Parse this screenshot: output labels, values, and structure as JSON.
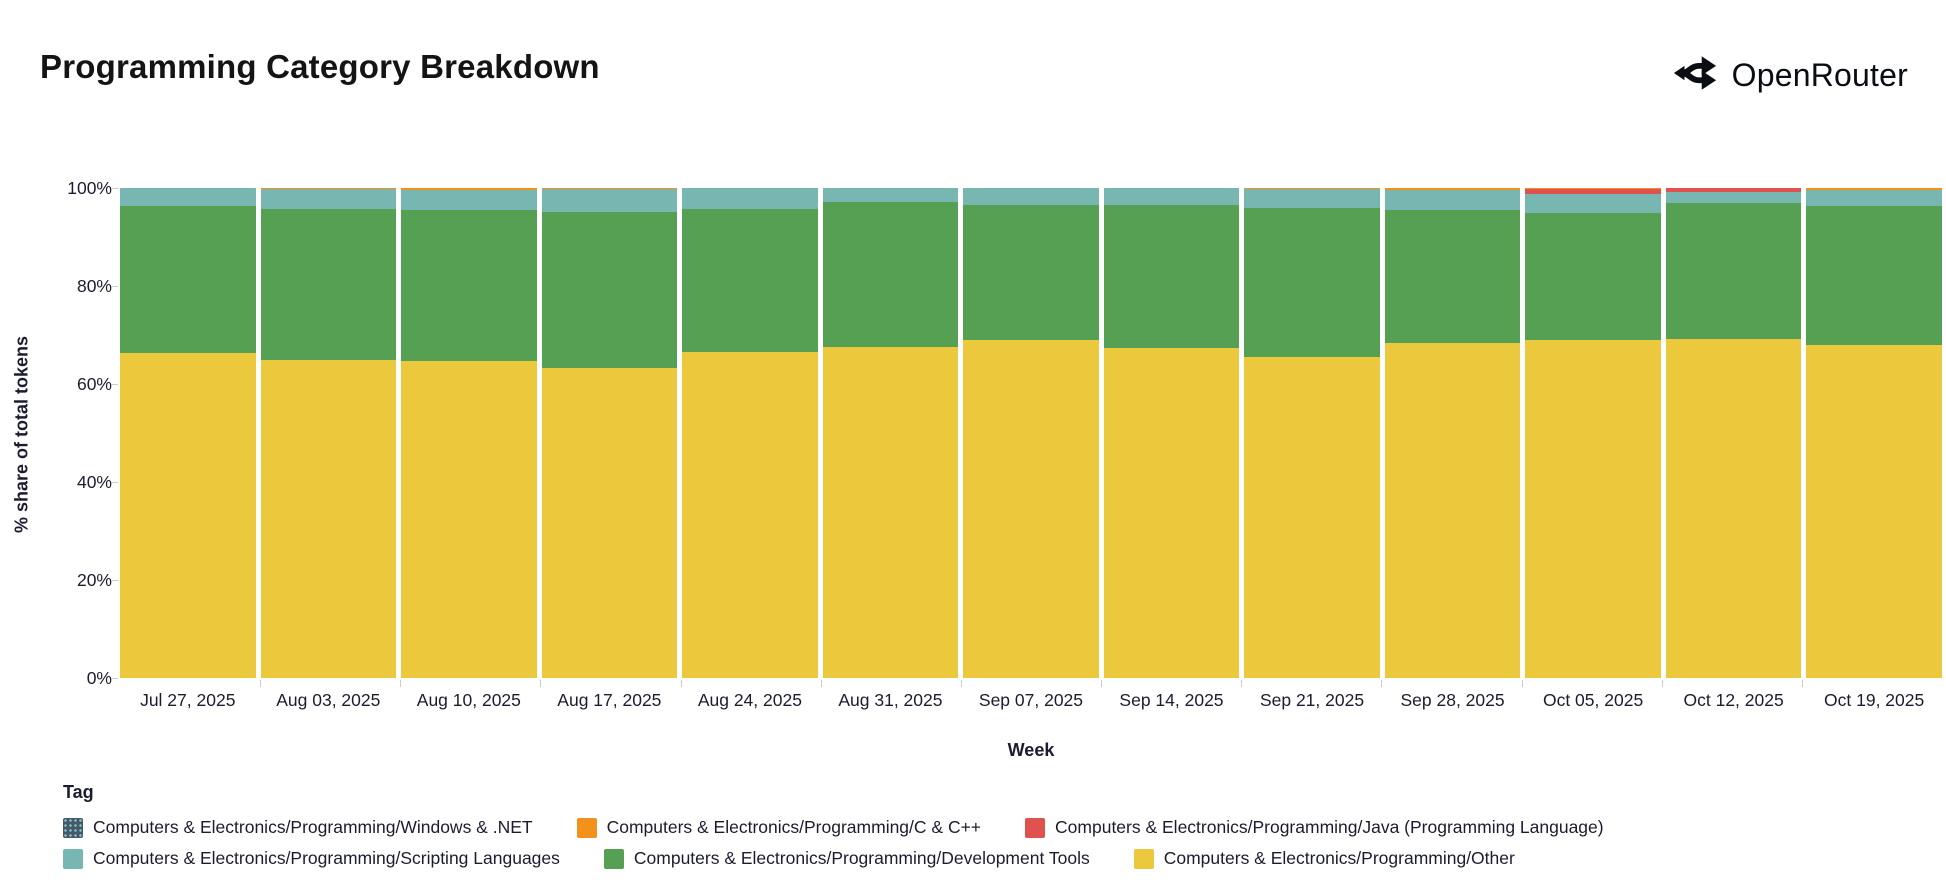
{
  "header": {
    "title": "Programming Category Breakdown",
    "brand": "OpenRouter"
  },
  "chart_data": {
    "type": "bar",
    "variant": "stacked-percentage",
    "title": "Programming Category Breakdown",
    "xlabel": "Week",
    "ylabel": "% share of total tokens",
    "ylim": [
      0,
      100
    ],
    "yticks": [
      0,
      20,
      40,
      60,
      80,
      100
    ],
    "ytick_suffix": "%",
    "grid": false,
    "legend_position": "bottom",
    "categories": [
      "Jul 27, 2025",
      "Aug 03, 2025",
      "Aug 10, 2025",
      "Aug 17, 2025",
      "Aug 24, 2025",
      "Aug 31, 2025",
      "Sep 07, 2025",
      "Sep 14, 2025",
      "Sep 21, 2025",
      "Sep 28, 2025",
      "Oct 05, 2025",
      "Oct 12, 2025",
      "Oct 19, 2025"
    ],
    "stack_order": "bottom-to-top",
    "series": [
      {
        "name": "Computers & Electronics/Programming/Other",
        "color": "#ecc83d",
        "values": [
          66.3,
          64.9,
          64.6,
          63.2,
          66.6,
          67.6,
          69.0,
          67.3,
          65.6,
          68.4,
          69.0,
          69.1,
          68.0
        ]
      },
      {
        "name": "Computers & Electronics/Programming/Development Tools",
        "color": "#55a052",
        "values": [
          30.0,
          30.9,
          31.0,
          32.0,
          29.2,
          29.5,
          27.5,
          29.3,
          30.3,
          27.2,
          25.9,
          27.8,
          28.3
        ]
      },
      {
        "name": "Computers & Electronics/Programming/Scripting Languages",
        "color": "#77b6b1",
        "values": [
          3.7,
          3.9,
          4.1,
          4.5,
          4.2,
          2.9,
          3.5,
          3.4,
          3.8,
          4.1,
          3.9,
          2.3,
          3.4
        ]
      },
      {
        "name": "Computers & Electronics/Programming/Java (Programming Language)",
        "color": "#e0524f",
        "values": [
          0,
          0,
          0,
          0,
          0,
          0,
          0,
          0,
          0,
          0,
          1.0,
          0.8,
          0
        ]
      },
      {
        "name": "Computers & Electronics/Programming/C & C++",
        "color": "#f2921d",
        "values": [
          0,
          0.3,
          0.3,
          0.3,
          0,
          0,
          0,
          0,
          0.3,
          0.3,
          0.2,
          0,
          0.3
        ]
      },
      {
        "name": "Computers & Electronics/Programming/Windows & .NET",
        "color": "#46586a",
        "pattern": "dots",
        "values": [
          0,
          0,
          0,
          0,
          0,
          0,
          0,
          0,
          0,
          0,
          0,
          0,
          0
        ]
      }
    ]
  },
  "legend": {
    "title": "Tag",
    "rows": [
      [
        {
          "label": "Computers & Electronics/Programming/Windows & .NET",
          "color": "#46586a",
          "pattern": "dots"
        },
        {
          "label": "Computers & Electronics/Programming/C & C++",
          "color": "#f2921d"
        },
        {
          "label": "Computers & Electronics/Programming/Java (Programming Language)",
          "color": "#e0524f"
        }
      ],
      [
        {
          "label": "Computers & Electronics/Programming/Scripting Languages",
          "color": "#77b6b1"
        },
        {
          "label": "Computers & Electronics/Programming/Development Tools",
          "color": "#55a052"
        },
        {
          "label": "Computers & Electronics/Programming/Other",
          "color": "#ecc83d"
        }
      ]
    ]
  },
  "colors": {
    "text": "#1c1c30",
    "tick": "#cccccc",
    "brand": "#0b0d15"
  }
}
